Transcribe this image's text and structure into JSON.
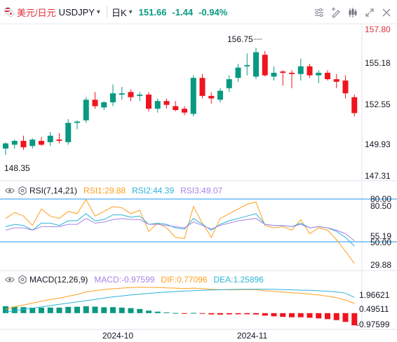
{
  "header": {
    "symbol_name": "美元/日元",
    "symbol_code": "USDJPY",
    "caret": "▾",
    "timeframe": "日K",
    "timeframe_caret": "▾",
    "last_price": "151.66",
    "change": "-1.44",
    "change_pct": "-0.94%"
  },
  "toolbar": {
    "tools": [
      "tune-icon",
      "drawing-icon",
      "indicators-icon",
      "fullscreen-icon",
      "close-icon"
    ]
  },
  "price_axis": {
    "labels": [
      "157.80",
      "155.18",
      "152.55",
      "149.93",
      "147.31"
    ],
    "high_annotation": "156.75",
    "low_annotation": "148.35"
  },
  "rsi": {
    "name": "RSI(7,14,21)",
    "rsi1": "RSI1:29.88",
    "rsi2": "RSI2:44.39",
    "rsi3": "RSI3:49.07",
    "axis_labels": [
      "80.00",
      "80.50",
      "55.19",
      "50.00",
      "29.88"
    ]
  },
  "macd": {
    "name": "MACD(12,26,9)",
    "macd": "MACD:-0.97599",
    "dif": "DIF:0.77096",
    "dea": "DEA:1.25896",
    "axis_labels": [
      "1.96621",
      "0.49511",
      "-0.97599"
    ]
  },
  "x_axis": {
    "labels": [
      "2024-10",
      "2024-11"
    ]
  },
  "colors": {
    "up": "#089981",
    "down": "#f0141e",
    "accent_red": "#e0303a",
    "rsi1": "#ff9f1c",
    "rsi2": "#2bb3d8",
    "rsi3": "#a884e6",
    "dif": "#ff9f1c",
    "dea": "#2bb3d8",
    "ref_line": "#2196f3"
  },
  "chart_data": [
    {
      "type": "candlestick",
      "title": "USDJPY",
      "ylim": [
        146.5,
        158.5
      ],
      "ohlc": [
        [
          148.9,
          149.4,
          148.4,
          149.3
        ],
        [
          149.2,
          149.6,
          148.9,
          149.5
        ],
        [
          149.5,
          149.9,
          148.8,
          149.0
        ],
        [
          149.1,
          149.7,
          148.9,
          149.6
        ],
        [
          149.5,
          149.8,
          149.1,
          149.2
        ],
        [
          149.4,
          150.2,
          149.1,
          149.9
        ],
        [
          149.6,
          150.1,
          149.3,
          149.5
        ],
        [
          149.4,
          151.2,
          149.2,
          150.9
        ],
        [
          150.9,
          151.1,
          150.4,
          151.0
        ],
        [
          151.1,
          152.9,
          150.9,
          152.7
        ],
        [
          152.7,
          153.3,
          152.0,
          152.2
        ],
        [
          152.1,
          152.6,
          151.9,
          152.5
        ],
        [
          152.5,
          153.9,
          152.2,
          153.2
        ],
        [
          153.1,
          153.7,
          152.7,
          153.2
        ],
        [
          153.3,
          153.5,
          152.6,
          152.9
        ],
        [
          153.0,
          153.3,
          152.6,
          153.1
        ],
        [
          153.1,
          153.3,
          151.8,
          152.0
        ],
        [
          152.0,
          152.8,
          151.7,
          152.6
        ],
        [
          152.6,
          152.8,
          152.0,
          152.3
        ],
        [
          152.2,
          152.6,
          151.8,
          151.9
        ],
        [
          152.0,
          152.2,
          151.5,
          151.7
        ],
        [
          151.6,
          154.6,
          151.4,
          154.4
        ],
        [
          154.4,
          154.7,
          152.8,
          153.0
        ],
        [
          153.0,
          153.3,
          152.4,
          152.8
        ],
        [
          152.7,
          153.6,
          152.5,
          153.4
        ],
        [
          153.6,
          154.6,
          153.3,
          154.3
        ],
        [
          154.4,
          155.5,
          154.1,
          155.2
        ],
        [
          155.3,
          156.3,
          154.6,
          155.4
        ],
        [
          154.5,
          156.75,
          154.3,
          156.4
        ],
        [
          156.2,
          156.5,
          154.5,
          154.6
        ],
        [
          154.5,
          155.3,
          154.2,
          154.8
        ],
        [
          154.9,
          155.0,
          153.8,
          154.8
        ],
        [
          154.8,
          155.0,
          153.6,
          154.7
        ],
        [
          154.7,
          155.9,
          154.2,
          155.3
        ],
        [
          155.3,
          155.5,
          154.4,
          154.6
        ],
        [
          154.6,
          155.0,
          154.0,
          154.8
        ],
        [
          154.8,
          155.0,
          154.2,
          154.3
        ],
        [
          154.3,
          154.7,
          153.6,
          154.1
        ],
        [
          154.2,
          154.6,
          152.8,
          153.2
        ],
        [
          152.9,
          153.1,
          151.4,
          151.66
        ]
      ]
    },
    {
      "type": "line",
      "title": "RSI(7,14,21)",
      "ylim": [
        25,
        88
      ],
      "series": [
        {
          "name": "RSI1",
          "values": [
            68,
            73,
            70,
            62,
            76,
            70,
            68,
            74,
            72,
            84,
            70,
            74,
            78,
            77,
            72,
            75,
            57,
            64,
            60,
            52,
            51,
            78,
            64,
            52,
            68,
            72,
            76,
            80,
            82,
            62,
            60,
            61,
            58,
            67,
            55,
            60,
            58,
            50,
            40,
            29.88
          ]
        },
        {
          "name": "RSI2",
          "values": [
            61,
            63,
            62,
            58,
            64,
            64,
            62,
            66,
            66,
            72,
            66,
            67,
            71,
            71,
            69,
            70,
            63,
            64,
            63,
            60,
            59,
            68,
            63,
            58,
            63,
            66,
            68,
            70,
            72,
            63,
            62,
            62,
            61,
            64,
            60,
            61,
            60,
            57,
            52,
            44.39
          ]
        },
        {
          "name": "RSI3",
          "values": [
            58,
            60,
            60,
            58,
            61,
            61,
            61,
            63,
            63,
            68,
            64,
            65,
            67,
            68,
            67,
            67,
            63,
            63,
            62,
            61,
            60,
            65,
            62,
            59,
            62,
            64,
            66,
            67,
            68,
            63,
            62,
            62,
            61,
            63,
            60,
            61,
            60,
            58,
            55,
            49.07
          ]
        }
      ]
    },
    {
      "type": "bar+line",
      "title": "MACD(12,26,9)",
      "ylim": [
        -1.3,
        2.4
      ],
      "series": [
        {
          "name": "MACD",
          "values": [
            0.55,
            0.52,
            0.48,
            0.44,
            0.44,
            0.45,
            0.44,
            0.5,
            0.51,
            0.55,
            0.52,
            0.47,
            0.48,
            0.44,
            0.4,
            0.33,
            0.2,
            0.12,
            0.06,
            0.01,
            -0.03,
            0.02,
            -0.04,
            -0.1,
            -0.12,
            -0.1,
            -0.09,
            -0.09,
            -0.11,
            -0.2,
            -0.25,
            -0.3,
            -0.33,
            -0.33,
            -0.37,
            -0.42,
            -0.48,
            -0.56,
            -0.7,
            -0.97599
          ]
        },
        {
          "name": "DIF",
          "values": [
            0.3,
            0.5,
            0.65,
            0.8,
            0.95,
            1.1,
            1.2,
            1.35,
            1.5,
            1.7,
            1.8,
            1.88,
            1.95,
            2.0,
            2.05,
            2.08,
            2.06,
            2.05,
            2.02,
            2.0,
            1.96,
            2.0,
            1.96,
            1.9,
            1.88,
            1.86,
            1.87,
            1.88,
            1.88,
            1.8,
            1.74,
            1.68,
            1.62,
            1.6,
            1.52,
            1.45,
            1.36,
            1.24,
            1.05,
            0.77096
          ]
        },
        {
          "name": "DEA",
          "values": [
            0.1,
            0.2,
            0.3,
            0.4,
            0.5,
            0.6,
            0.7,
            0.8,
            0.9,
            1.0,
            1.1,
            1.2,
            1.3,
            1.38,
            1.45,
            1.52,
            1.58,
            1.64,
            1.69,
            1.73,
            1.77,
            1.8,
            1.83,
            1.85,
            1.87,
            1.89,
            1.9,
            1.91,
            1.92,
            1.91,
            1.9,
            1.88,
            1.86,
            1.84,
            1.82,
            1.79,
            1.75,
            1.7,
            1.6,
            1.25896
          ]
        }
      ]
    }
  ]
}
